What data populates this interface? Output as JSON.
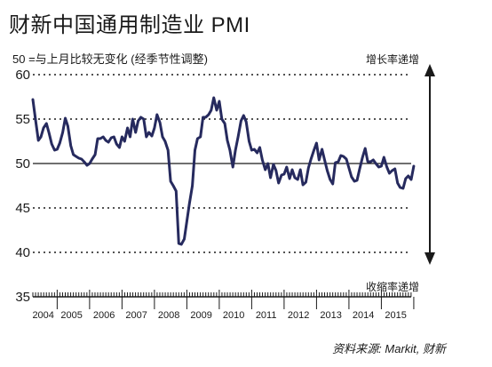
{
  "header": {
    "title": "财新中国通用制造业 PMI",
    "subtitle": "50 =与上月比较无变化 (经季节性调整)"
  },
  "source": "资料来源: Markit, 财新",
  "chart_data": {
    "type": "line",
    "title": "财新中国通用制造业 PMI",
    "subtitle": "50 =与上月比较无变化 (经季节性调整)",
    "xlabel": "",
    "ylabel": "",
    "ylim": [
      35,
      60
    ],
    "yticks": [
      35,
      40,
      45,
      50,
      55,
      60
    ],
    "x_categories": [
      "2004",
      "2005",
      "2006",
      "2007",
      "2008",
      "2009",
      "2010",
      "2011",
      "2012",
      "2013",
      "2014",
      "2015"
    ],
    "x_range": [
      2004.25,
      2015.92
    ],
    "grid": "dotted horizontal at 40, 45, 55, 60; solid reference line at 50",
    "annotations": {
      "up": "增长率递增",
      "down": "收缩率递增"
    },
    "series": [
      {
        "color": "#262a5e",
        "points": [
          [
            2004.25,
            57.2
          ],
          [
            2004.33,
            55.0
          ],
          [
            2004.42,
            52.6
          ],
          [
            2004.5,
            53.0
          ],
          [
            2004.58,
            54.0
          ],
          [
            2004.67,
            54.5
          ],
          [
            2004.75,
            53.4
          ],
          [
            2004.83,
            52.2
          ],
          [
            2004.92,
            51.5
          ],
          [
            2005.0,
            51.6
          ],
          [
            2005.08,
            52.3
          ],
          [
            2005.17,
            53.5
          ],
          [
            2005.25,
            55.1
          ],
          [
            2005.33,
            54.2
          ],
          [
            2005.42,
            52.0
          ],
          [
            2005.5,
            51.0
          ],
          [
            2005.58,
            50.8
          ],
          [
            2005.67,
            50.6
          ],
          [
            2005.75,
            50.5
          ],
          [
            2005.83,
            50.2
          ],
          [
            2005.92,
            49.8
          ],
          [
            2006.0,
            50.0
          ],
          [
            2006.08,
            50.5
          ],
          [
            2006.17,
            51.0
          ],
          [
            2006.25,
            52.8
          ],
          [
            2006.33,
            52.8
          ],
          [
            2006.42,
            53.0
          ],
          [
            2006.5,
            52.6
          ],
          [
            2006.58,
            52.4
          ],
          [
            2006.67,
            52.9
          ],
          [
            2006.75,
            53.0
          ],
          [
            2006.83,
            52.2
          ],
          [
            2006.92,
            51.8
          ],
          [
            2007.0,
            53.0
          ],
          [
            2007.08,
            52.5
          ],
          [
            2007.17,
            54.0
          ],
          [
            2007.25,
            53.0
          ],
          [
            2007.33,
            55.0
          ],
          [
            2007.42,
            53.5
          ],
          [
            2007.5,
            54.8
          ],
          [
            2007.58,
            55.2
          ],
          [
            2007.67,
            55.0
          ],
          [
            2007.75,
            53.0
          ],
          [
            2007.83,
            53.5
          ],
          [
            2007.92,
            53.1
          ],
          [
            2008.0,
            54.0
          ],
          [
            2008.08,
            55.5
          ],
          [
            2008.17,
            54.6
          ],
          [
            2008.25,
            53.0
          ],
          [
            2008.33,
            52.5
          ],
          [
            2008.42,
            51.5
          ],
          [
            2008.5,
            48.0
          ],
          [
            2008.58,
            47.5
          ],
          [
            2008.67,
            46.9
          ],
          [
            2008.75,
            41.0
          ],
          [
            2008.83,
            40.9
          ],
          [
            2008.92,
            41.5
          ],
          [
            2009.0,
            43.5
          ],
          [
            2009.08,
            45.5
          ],
          [
            2009.17,
            47.5
          ],
          [
            2009.25,
            51.5
          ],
          [
            2009.33,
            52.8
          ],
          [
            2009.42,
            53.0
          ],
          [
            2009.5,
            55.2
          ],
          [
            2009.58,
            55.2
          ],
          [
            2009.67,
            55.5
          ],
          [
            2009.75,
            56.0
          ],
          [
            2009.83,
            57.4
          ],
          [
            2009.92,
            56.0
          ],
          [
            2010.0,
            57.0
          ],
          [
            2010.08,
            55.0
          ],
          [
            2010.17,
            54.5
          ],
          [
            2010.25,
            52.6
          ],
          [
            2010.33,
            51.5
          ],
          [
            2010.42,
            49.6
          ],
          [
            2010.5,
            51.5
          ],
          [
            2010.58,
            53.0
          ],
          [
            2010.67,
            54.8
          ],
          [
            2010.75,
            55.4
          ],
          [
            2010.83,
            54.7
          ],
          [
            2010.92,
            52.5
          ],
          [
            2011.0,
            51.5
          ],
          [
            2011.08,
            51.6
          ],
          [
            2011.17,
            51.2
          ],
          [
            2011.25,
            51.8
          ],
          [
            2011.33,
            50.4
          ],
          [
            2011.42,
            49.3
          ],
          [
            2011.5,
            50.0
          ],
          [
            2011.58,
            48.4
          ],
          [
            2011.67,
            49.9
          ],
          [
            2011.75,
            49.2
          ],
          [
            2011.83,
            47.8
          ],
          [
            2011.92,
            48.7
          ],
          [
            2012.0,
            48.8
          ],
          [
            2012.08,
            49.6
          ],
          [
            2012.17,
            48.3
          ],
          [
            2012.25,
            49.3
          ],
          [
            2012.33,
            48.4
          ],
          [
            2012.42,
            48.2
          ],
          [
            2012.5,
            49.3
          ],
          [
            2012.58,
            47.6
          ],
          [
            2012.67,
            47.9
          ],
          [
            2012.75,
            49.5
          ],
          [
            2012.83,
            50.5
          ],
          [
            2012.92,
            51.5
          ],
          [
            2013.0,
            52.3
          ],
          [
            2013.08,
            50.4
          ],
          [
            2013.17,
            51.6
          ],
          [
            2013.25,
            50.4
          ],
          [
            2013.33,
            49.2
          ],
          [
            2013.42,
            48.2
          ],
          [
            2013.5,
            47.7
          ],
          [
            2013.58,
            50.1
          ],
          [
            2013.67,
            50.2
          ],
          [
            2013.75,
            50.9
          ],
          [
            2013.83,
            50.8
          ],
          [
            2013.92,
            50.5
          ],
          [
            2014.0,
            49.5
          ],
          [
            2014.08,
            48.5
          ],
          [
            2014.17,
            48.0
          ],
          [
            2014.25,
            48.1
          ],
          [
            2014.33,
            49.4
          ],
          [
            2014.42,
            50.7
          ],
          [
            2014.5,
            51.7
          ],
          [
            2014.58,
            50.2
          ],
          [
            2014.67,
            50.2
          ],
          [
            2014.75,
            50.4
          ],
          [
            2014.83,
            50.0
          ],
          [
            2014.92,
            49.6
          ],
          [
            2015.0,
            49.7
          ],
          [
            2015.08,
            50.7
          ],
          [
            2015.17,
            49.6
          ],
          [
            2015.25,
            48.9
          ],
          [
            2015.33,
            49.2
          ],
          [
            2015.42,
            49.4
          ],
          [
            2015.5,
            47.8
          ],
          [
            2015.58,
            47.3
          ],
          [
            2015.67,
            47.2
          ],
          [
            2015.75,
            48.3
          ],
          [
            2015.83,
            48.6
          ],
          [
            2015.92,
            48.2
          ],
          [
            2016.0,
            49.7
          ]
        ]
      }
    ]
  }
}
